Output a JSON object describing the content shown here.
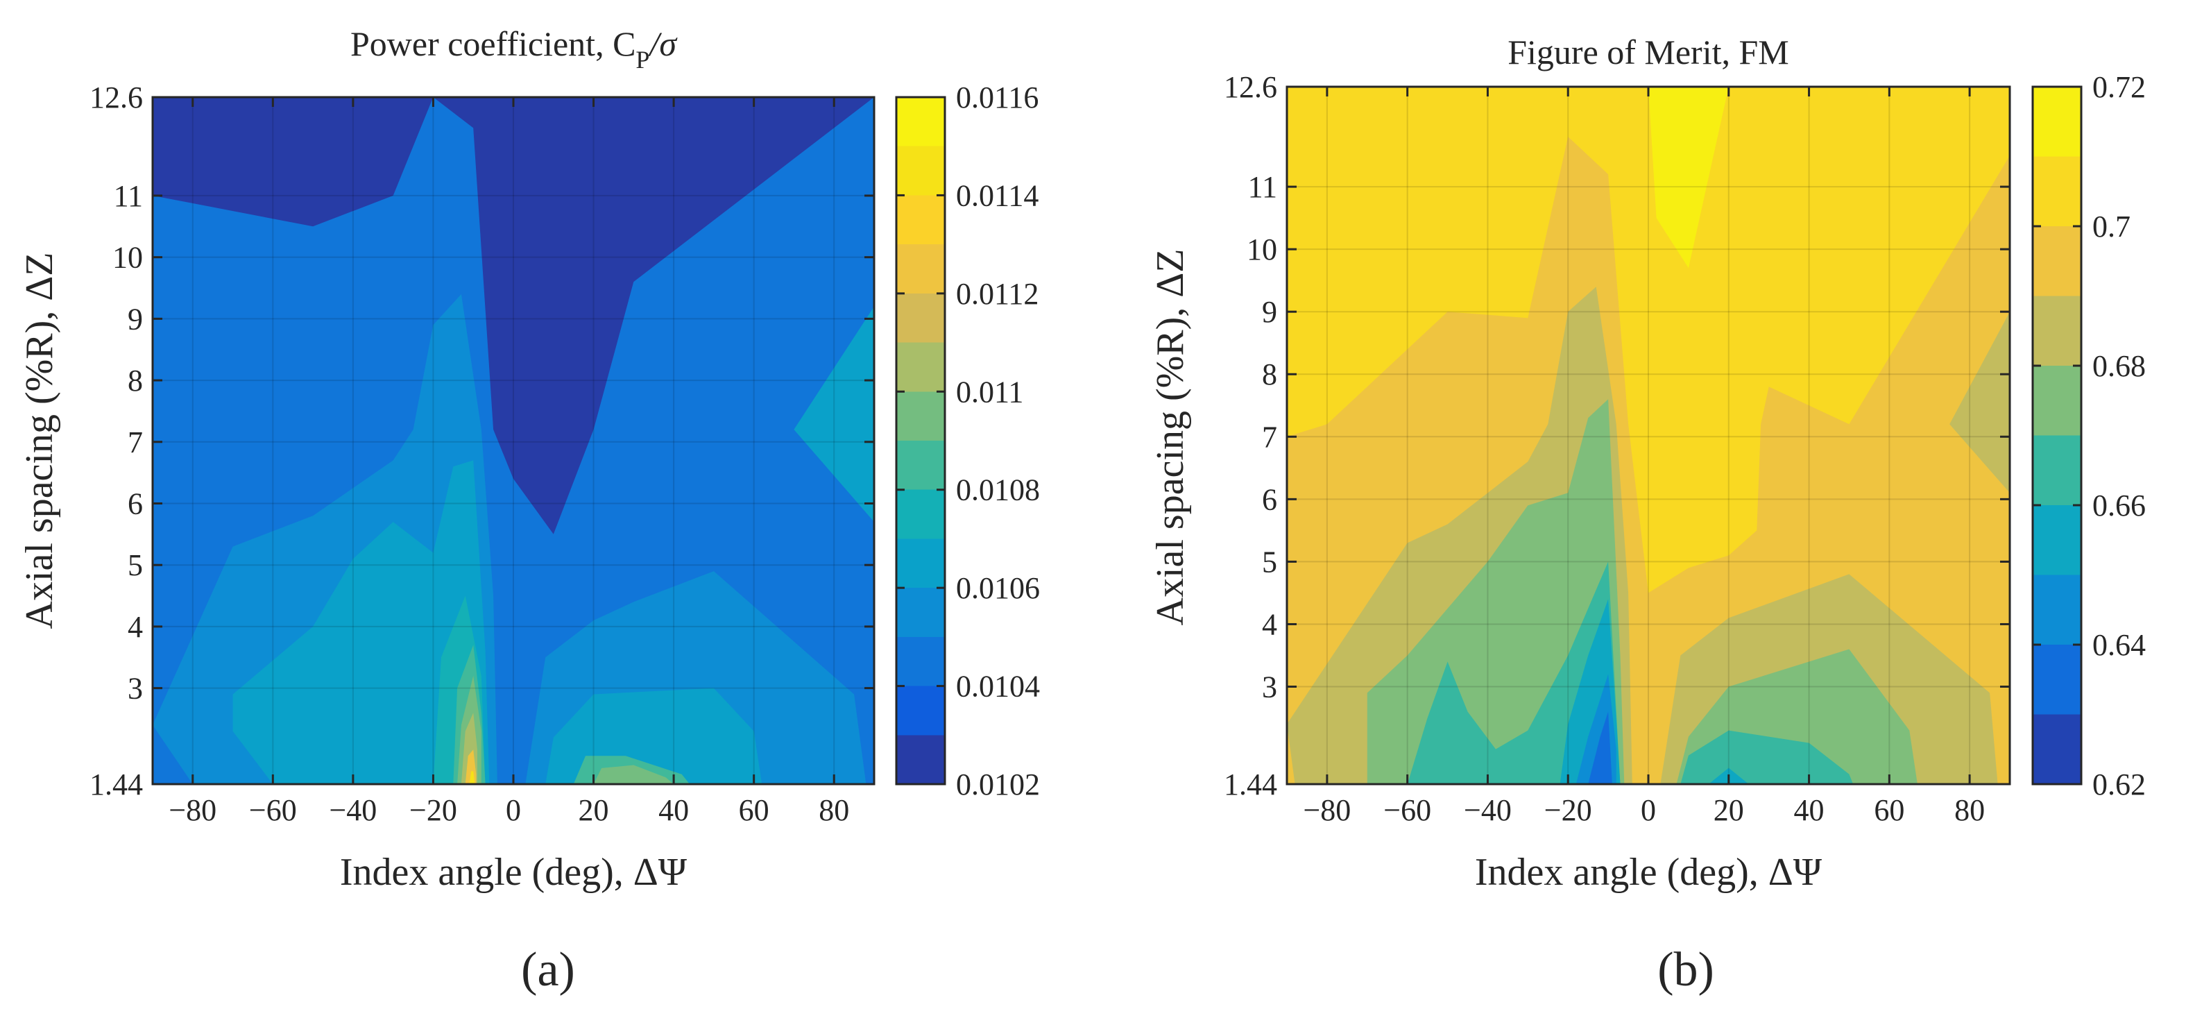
{
  "chart_data": [
    {
      "type": "contour",
      "panel_label": "(a)",
      "title": "Power coefficient, C",
      "title_sub": "P",
      "title_tail": "/σ",
      "xlabel": "Index angle (deg), ΔΨ",
      "ylabel": "Axial spacing (%R), ΔZ",
      "xlim": [
        -90,
        90
      ],
      "ylim": [
        1.44,
        12.6
      ],
      "xticks": [
        -80,
        -60,
        -40,
        -20,
        0,
        20,
        40,
        60,
        80
      ],
      "xtick_labels": [
        "−80",
        "−60",
        "−40",
        "−20",
        "0",
        "20",
        "40",
        "60",
        "80"
      ],
      "yticks": [
        1.44,
        3,
        4,
        5,
        6,
        7,
        8,
        9,
        10,
        11,
        12.6
      ],
      "ytick_labels": [
        "1.44",
        "3",
        "4",
        "5",
        "6",
        "7",
        "8",
        "9",
        "10",
        "11",
        "12.6"
      ],
      "colorbar": {
        "range": [
          0.0102,
          0.0116
        ],
        "ticks": [
          0.0102,
          0.0104,
          0.0106,
          0.0108,
          0.011,
          0.0112,
          0.0114,
          0.0116
        ],
        "tick_labels": [
          "0.0102",
          "0.0104",
          "0.0106",
          "0.0108",
          "0.011",
          "0.0112",
          "0.0114",
          "0.0116"
        ],
        "levels": 14
      },
      "regions": [
        {
          "level": 0.0104,
          "points": [
            [
              -90,
              1.44
            ],
            [
              90,
              1.44
            ],
            [
              90,
              12.6
            ],
            [
              -90,
              12.6
            ]
          ]
        },
        {
          "level": 0.0102,
          "points": [
            [
              -90,
              11
            ],
            [
              -50,
              10.5
            ],
            [
              -30,
              11
            ],
            [
              -20,
              12.6
            ],
            [
              -90,
              12.6
            ]
          ]
        },
        {
          "level": 0.0102,
          "points": [
            [
              -20,
              12.6
            ],
            [
              -10,
              12.1
            ],
            [
              -5,
              7.2
            ],
            [
              0,
              6.4
            ],
            [
              10,
              5.5
            ],
            [
              20,
              7.2
            ],
            [
              30,
              9.6
            ],
            [
              90,
              12.6
            ]
          ]
        },
        {
          "level": 0.0106,
          "points": [
            [
              90,
              9.2
            ],
            [
              70,
              7.2
            ],
            [
              90,
              5.7
            ]
          ]
        },
        {
          "level": 0.0105,
          "points": [
            [
              -90,
              2.4
            ],
            [
              -70,
              5.3
            ],
            [
              -50,
              5.8
            ],
            [
              -30,
              6.7
            ],
            [
              -25,
              7.2
            ],
            [
              -20,
              8.9
            ],
            [
              -13,
              9.4
            ],
            [
              -8,
              7.2
            ],
            [
              -5,
              4.5
            ],
            [
              -4,
              1.44
            ],
            [
              -80,
              1.44
            ]
          ]
        },
        {
          "level": 0.0105,
          "points": [
            [
              3,
              1.44
            ],
            [
              8,
              3.5
            ],
            [
              20,
              4.1
            ],
            [
              30,
              4.4
            ],
            [
              50,
              4.9
            ],
            [
              85,
              2.9
            ],
            [
              88,
              1.44
            ]
          ]
        },
        {
          "level": 0.0106,
          "points": [
            [
              -70,
              2.9
            ],
            [
              -50,
              4.0
            ],
            [
              -40,
              5.1
            ],
            [
              -30,
              5.7
            ],
            [
              -20,
              5.2
            ],
            [
              -15,
              6.6
            ],
            [
              -10,
              6.7
            ],
            [
              -7,
              3.6
            ],
            [
              -6,
              1.44
            ],
            [
              -60,
              1.44
            ],
            [
              -70,
              2.3
            ]
          ]
        },
        {
          "level": 0.0106,
          "points": [
            [
              8,
              1.44
            ],
            [
              10,
              2.2
            ],
            [
              20,
              2.9
            ],
            [
              50,
              3.0
            ],
            [
              60,
              2.3
            ],
            [
              62,
              1.44
            ]
          ]
        },
        {
          "level": 0.0107,
          "points": [
            [
              -20,
              1.44
            ],
            [
              -18,
              3.5
            ],
            [
              -12,
              4.5
            ],
            [
              -8,
              3.2
            ],
            [
              -7,
              1.44
            ]
          ]
        },
        {
          "level": 0.0108,
          "points": [
            [
              -15,
              1.44
            ],
            [
              -14,
              3.0
            ],
            [
              -10,
              3.7
            ],
            [
              -8,
              2.6
            ],
            [
              -7,
              1.44
            ]
          ]
        },
        {
          "level": 0.0109,
          "points": [
            [
              -14,
              1.44
            ],
            [
              -13,
              2.4
            ],
            [
              -10,
              3.2
            ],
            [
              -8,
              2.3
            ],
            [
              -8,
              1.44
            ]
          ]
        },
        {
          "level": 0.011,
          "points": [
            [
              -13,
              1.44
            ],
            [
              -12,
              2.3
            ],
            [
              -10,
              2.6
            ],
            [
              -9,
              2.0
            ],
            [
              -9,
              1.44
            ]
          ]
        },
        {
          "level": 0.0108,
          "points": [
            [
              15,
              1.44
            ],
            [
              18,
              1.9
            ],
            [
              28,
              1.9
            ],
            [
              42,
              1.6
            ],
            [
              44,
              1.44
            ]
          ]
        },
        {
          "level": 0.0109,
          "points": [
            [
              20,
              1.44
            ],
            [
              22,
              1.7
            ],
            [
              30,
              1.75
            ],
            [
              38,
              1.55
            ],
            [
              40,
              1.44
            ]
          ]
        },
        {
          "level": 0.0112,
          "points": [
            [
              -12,
              1.44
            ],
            [
              -11.3,
              1.9
            ],
            [
              -10,
              2.0
            ],
            [
              -9.3,
              1.6
            ],
            [
              -9.3,
              1.44
            ]
          ]
        },
        {
          "level": 0.0114,
          "points": [
            [
              -11,
              1.44
            ],
            [
              -10.5,
              1.65
            ],
            [
              -10,
              1.65
            ],
            [
              -9.6,
              1.44
            ]
          ]
        }
      ]
    },
    {
      "type": "contour",
      "panel_label": "(b)",
      "title": "Figure of Merit, FM",
      "xlabel": "Index angle (deg), ΔΨ",
      "ylabel": "Axial spacing (%R), ΔZ",
      "xlim": [
        -90,
        90
      ],
      "ylim": [
        1.44,
        12.6
      ],
      "xticks": [
        -80,
        -60,
        -40,
        -20,
        0,
        20,
        40,
        60,
        80
      ],
      "xtick_labels": [
        "−80",
        "−60",
        "−40",
        "−20",
        "0",
        "20",
        "40",
        "60",
        "80"
      ],
      "yticks": [
        1.44,
        3,
        4,
        5,
        6,
        7,
        8,
        9,
        10,
        11,
        12.6
      ],
      "ytick_labels": [
        "1.44",
        "3",
        "4",
        "5",
        "6",
        "7",
        "8",
        "9",
        "10",
        "11",
        "12.6"
      ],
      "colorbar": {
        "range": [
          0.62,
          0.72
        ],
        "ticks": [
          0.62,
          0.64,
          0.66,
          0.68,
          0.7,
          0.72
        ],
        "tick_labels": [
          "0.62",
          "0.64",
          "0.66",
          "0.68",
          "0.7",
          "0.72"
        ],
        "levels": 10
      },
      "regions": [
        {
          "level": 0.7,
          "points": [
            [
              -90,
              1.44
            ],
            [
              90,
              1.44
            ],
            [
              90,
              12.6
            ],
            [
              -90,
              12.6
            ]
          ]
        },
        {
          "level": 0.71,
          "points": [
            [
              0,
              12.6
            ],
            [
              20,
              12.6
            ],
            [
              10,
              9.7
            ],
            [
              2,
              10.5
            ]
          ]
        },
        {
          "level": 0.69,
          "points": [
            [
              -90,
              1.44
            ],
            [
              -90,
              7.0
            ],
            [
              -80,
              7.2
            ],
            [
              -50,
              9.0
            ],
            [
              -30,
              8.9
            ],
            [
              -20,
              11.8
            ],
            [
              -10,
              11.2
            ],
            [
              -5,
              7.2
            ],
            [
              0,
              4.5
            ],
            [
              10,
              4.9
            ],
            [
              20,
              5.1
            ],
            [
              27,
              5.5
            ],
            [
              28,
              7.2
            ],
            [
              30,
              7.8
            ],
            [
              50,
              7.2
            ],
            [
              90,
              11.5
            ],
            [
              90,
              1.44
            ]
          ]
        },
        {
          "level": 0.68,
          "points": [
            [
              90,
              9.0
            ],
            [
              75,
              7.2
            ],
            [
              90,
              6.1
            ]
          ]
        },
        {
          "level": 0.68,
          "points": [
            [
              -90,
              2.4
            ],
            [
              -60,
              5.3
            ],
            [
              -50,
              5.6
            ],
            [
              -30,
              6.6
            ],
            [
              -25,
              7.2
            ],
            [
              -20,
              9.0
            ],
            [
              -13,
              9.4
            ],
            [
              -8,
              7.2
            ],
            [
              -5,
              4.5
            ],
            [
              -4,
              1.44
            ],
            [
              -88,
              1.44
            ]
          ]
        },
        {
          "level": 0.68,
          "points": [
            [
              3,
              1.44
            ],
            [
              8,
              3.5
            ],
            [
              20,
              4.1
            ],
            [
              50,
              4.8
            ],
            [
              85,
              2.9
            ],
            [
              87,
              1.44
            ]
          ]
        },
        {
          "level": 0.67,
          "points": [
            [
              -70,
              2.9
            ],
            [
              -60,
              3.5
            ],
            [
              -40,
              5.0
            ],
            [
              -30,
              5.9
            ],
            [
              -20,
              6.1
            ],
            [
              -15,
              7.3
            ],
            [
              -10,
              7.6
            ],
            [
              -7,
              3.5
            ],
            [
              -6,
              1.44
            ],
            [
              -70,
              1.44
            ]
          ]
        },
        {
          "level": 0.67,
          "points": [
            [
              7,
              1.44
            ],
            [
              10,
              2.2
            ],
            [
              20,
              3.0
            ],
            [
              50,
              3.6
            ],
            [
              65,
              2.3
            ],
            [
              67,
              1.44
            ]
          ]
        },
        {
          "level": 0.66,
          "points": [
            [
              -60,
              1.44
            ],
            [
              -55,
              2.5
            ],
            [
              -50,
              3.4
            ],
            [
              -45,
              2.6
            ],
            [
              -38,
              2.0
            ],
            [
              -30,
              2.3
            ],
            [
              -20,
              3.5
            ],
            [
              -10,
              5.0
            ],
            [
              -7,
              1.44
            ]
          ]
        },
        {
          "level": 0.66,
          "points": [
            [
              8,
              1.44
            ],
            [
              10,
              1.9
            ],
            [
              20,
              2.3
            ],
            [
              40,
              2.1
            ],
            [
              50,
              1.6
            ],
            [
              51,
              1.44
            ]
          ]
        },
        {
          "level": 0.65,
          "points": [
            [
              -22,
              1.44
            ],
            [
              -20,
              2.4
            ],
            [
              -15,
              3.5
            ],
            [
              -10,
              4.4
            ],
            [
              -8,
              2.5
            ],
            [
              -7,
              1.44
            ]
          ]
        },
        {
          "level": 0.64,
          "points": [
            [
              -18,
              1.44
            ],
            [
              -15,
              2.2
            ],
            [
              -10,
              3.2
            ],
            [
              -8,
              2.0
            ],
            [
              -8,
              1.44
            ]
          ]
        },
        {
          "level": 0.63,
          "points": [
            [
              -15,
              1.44
            ],
            [
              -12,
              2.2
            ],
            [
              -10,
              2.6
            ],
            [
              -9,
              1.44
            ]
          ]
        },
        {
          "level": 0.65,
          "points": [
            [
              15,
              1.44
            ],
            [
              20,
              1.7
            ],
            [
              25,
              1.44
            ]
          ]
        }
      ]
    }
  ]
}
